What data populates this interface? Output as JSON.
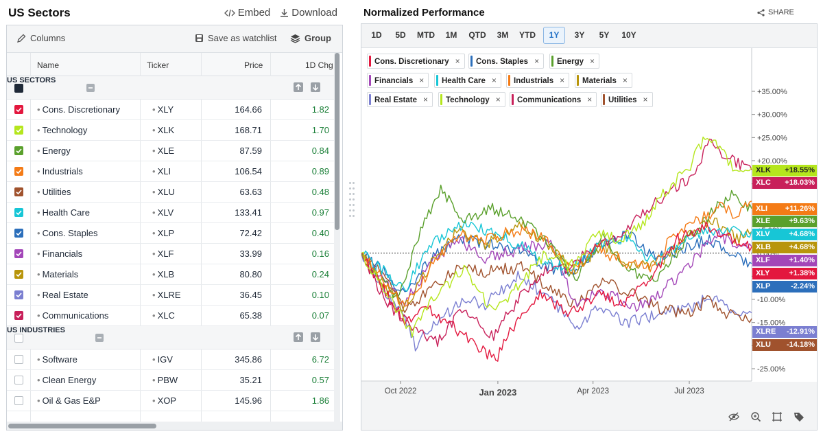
{
  "left_panel": {
    "title": "US Sectors",
    "embed_label": "Embed",
    "download_label": "Download",
    "columns_label": "Columns",
    "watchlist_label": "Save as watchlist",
    "group_label": "Group",
    "headers": {
      "name": "Name",
      "ticker": "Ticker",
      "price": "Price",
      "change": "1D Chg"
    },
    "groups": [
      {
        "title": "US SECTORS",
        "rows": [
          {
            "name": "Cons. Discretionary",
            "ticker": "XLY",
            "price": "164.66",
            "change": "1.82",
            "color": "#e3173e",
            "checked": true
          },
          {
            "name": "Technology",
            "ticker": "XLK",
            "price": "168.71",
            "change": "1.70",
            "color": "#b5e61d",
            "checked": true
          },
          {
            "name": "Energy",
            "ticker": "XLE",
            "price": "87.59",
            "change": "0.84",
            "color": "#5aa02c",
            "checked": true
          },
          {
            "name": "Industrials",
            "ticker": "XLI",
            "price": "106.54",
            "change": "0.89",
            "color": "#f47b16",
            "checked": true
          },
          {
            "name": "Utilities",
            "ticker": "XLU",
            "price": "63.63",
            "change": "0.48",
            "color": "#a0522d",
            "checked": true
          },
          {
            "name": "Health Care",
            "ticker": "XLV",
            "price": "133.41",
            "change": "0.97",
            "color": "#17c6d6",
            "checked": true
          },
          {
            "name": "Cons. Staples",
            "ticker": "XLP",
            "price": "72.42",
            "change": "0.40",
            "color": "#2c6fbb",
            "checked": true
          },
          {
            "name": "Financials",
            "ticker": "XLF",
            "price": "33.99",
            "change": "0.16",
            "color": "#a346b8",
            "checked": true
          },
          {
            "name": "Materials",
            "ticker": "XLB",
            "price": "80.80",
            "change": "0.24",
            "color": "#b8950b",
            "checked": true
          },
          {
            "name": "Real Estate",
            "ticker": "XLRE",
            "price": "36.45",
            "change": "0.10",
            "color": "#7b7fd1",
            "checked": true
          },
          {
            "name": "Communications",
            "ticker": "XLC",
            "price": "65.38",
            "change": "0.07",
            "color": "#c8205a",
            "checked": true
          }
        ]
      },
      {
        "title": "US INDUSTRIES",
        "rows": [
          {
            "name": "Software",
            "ticker": "IGV",
            "price": "345.86",
            "change": "6.72",
            "color": "#ffffff",
            "checked": false
          },
          {
            "name": "Clean Energy",
            "ticker": "PBW",
            "price": "35.21",
            "change": "0.57",
            "color": "#ffffff",
            "checked": false
          },
          {
            "name": "Oil & Gas E&P",
            "ticker": "XOP",
            "price": "145.96",
            "change": "1.86",
            "color": "#ffffff",
            "checked": false
          }
        ]
      }
    ]
  },
  "right_panel": {
    "title": "Normalized Performance",
    "share_label": "SHARE",
    "periods": [
      "1D",
      "5D",
      "MTD",
      "1M",
      "QTD",
      "3M",
      "YTD",
      "1Y",
      "3Y",
      "5Y",
      "10Y"
    ],
    "active_period": "1Y",
    "legend_close": "×",
    "legend": [
      {
        "name": "Cons. Discretionary",
        "color": "#e3173e"
      },
      {
        "name": "Cons. Staples",
        "color": "#2c6fbb"
      },
      {
        "name": "Energy",
        "color": "#5aa02c"
      },
      {
        "name": "Financials",
        "color": "#a346b8"
      },
      {
        "name": "Health Care",
        "color": "#17c6d6"
      },
      {
        "name": "Industrials",
        "color": "#f47b16"
      },
      {
        "name": "Materials",
        "color": "#b8950b"
      },
      {
        "name": "Real Estate",
        "color": "#7b7fd1"
      },
      {
        "name": "Technology",
        "color": "#b5e61d"
      },
      {
        "name": "Communications",
        "color": "#c8205a"
      },
      {
        "name": "Utilities",
        "color": "#a0522d"
      }
    ]
  },
  "chart_data": {
    "type": "line",
    "ylabel_format": "percent",
    "ylim": [
      -27,
      39
    ],
    "yticks": [
      -25,
      -20,
      -15,
      -10,
      -5,
      0,
      5,
      10,
      15,
      20,
      25,
      30,
      35
    ],
    "ytick_labels": [
      "-25.00%",
      "-20.00%",
      "-15.00%",
      "-10.00%",
      "-5.00%",
      "0.00%",
      "+5.00%",
      "+10.00%",
      "+15.00%",
      "+20.00%",
      "+25.00%",
      "+30.00%",
      "+35.00%"
    ],
    "xlim": [
      "2022-08-25",
      "2023-08-29"
    ],
    "xticks": [
      {
        "date": "2022-10-01",
        "label": "Oct 2022",
        "major": false
      },
      {
        "date": "2023-01-01",
        "label": "Jan 2023",
        "major": true
      },
      {
        "date": "2023-04-01",
        "label": "Apr 2023",
        "major": false
      },
      {
        "date": "2023-07-01",
        "label": "Jul 2023",
        "major": false
      }
    ],
    "series": [
      {
        "name": "XLK",
        "color": "#b5e61d",
        "last_label": "+18.55%",
        "last": 18.55,
        "points": [
          [
            "2022-08-25",
            0
          ],
          [
            "2022-09-15",
            -8
          ],
          [
            "2022-10-12",
            -17
          ],
          [
            "2022-11-01",
            -10
          ],
          [
            "2022-11-30",
            -3
          ],
          [
            "2022-12-28",
            -13
          ],
          [
            "2023-01-20",
            -7
          ],
          [
            "2023-02-15",
            0
          ],
          [
            "2023-03-10",
            -3
          ],
          [
            "2023-04-05",
            4
          ],
          [
            "2023-04-28",
            3
          ],
          [
            "2023-05-20",
            7
          ],
          [
            "2023-06-10",
            14
          ],
          [
            "2023-06-30",
            18
          ],
          [
            "2023-07-18",
            26
          ],
          [
            "2023-08-01",
            22
          ],
          [
            "2023-08-15",
            17
          ],
          [
            "2023-08-29",
            18.55
          ]
        ]
      },
      {
        "name": "XLC",
        "color": "#c8205a",
        "last_label": "+18.03%",
        "last": 18.03,
        "points": [
          [
            "2022-08-25",
            0
          ],
          [
            "2022-09-15",
            -10
          ],
          [
            "2022-10-12",
            -16
          ],
          [
            "2022-11-05",
            -19
          ],
          [
            "2022-11-30",
            -12
          ],
          [
            "2022-12-28",
            -18
          ],
          [
            "2023-01-20",
            -10
          ],
          [
            "2023-02-15",
            -4
          ],
          [
            "2023-03-10",
            -3
          ],
          [
            "2023-04-05",
            2
          ],
          [
            "2023-04-28",
            4
          ],
          [
            "2023-05-20",
            9
          ],
          [
            "2023-06-15",
            14
          ],
          [
            "2023-07-05",
            17
          ],
          [
            "2023-07-20",
            24
          ],
          [
            "2023-08-05",
            21
          ],
          [
            "2023-08-20",
            19
          ],
          [
            "2023-08-29",
            18.03
          ]
        ]
      },
      {
        "name": "XLI",
        "color": "#f47b16",
        "last_label": "+11.26%",
        "last": 11.26,
        "points": [
          [
            "2022-08-25",
            0
          ],
          [
            "2022-09-15",
            -6
          ],
          [
            "2022-10-05",
            -12
          ],
          [
            "2022-10-30",
            -3
          ],
          [
            "2022-11-25",
            4
          ],
          [
            "2022-12-20",
            3
          ],
          [
            "2023-01-20",
            5
          ],
          [
            "2023-02-15",
            3
          ],
          [
            "2023-03-12",
            -4
          ],
          [
            "2023-04-05",
            1
          ],
          [
            "2023-05-01",
            -2
          ],
          [
            "2023-05-25",
            -3
          ],
          [
            "2023-06-20",
            5
          ],
          [
            "2023-07-15",
            8
          ],
          [
            "2023-08-01",
            10
          ],
          [
            "2023-08-15",
            8
          ],
          [
            "2023-08-29",
            11.26
          ]
        ]
      },
      {
        "name": "XLE",
        "color": "#5aa02c",
        "last_label": "+9.63%",
        "last": 9.63,
        "points": [
          [
            "2022-08-25",
            0
          ],
          [
            "2022-09-10",
            -5
          ],
          [
            "2022-09-28",
            -10
          ],
          [
            "2022-10-20",
            5
          ],
          [
            "2022-11-08",
            14
          ],
          [
            "2022-12-01",
            7
          ],
          [
            "2022-12-25",
            10
          ],
          [
            "2023-01-25",
            7
          ],
          [
            "2023-02-20",
            2
          ],
          [
            "2023-03-15",
            -6
          ],
          [
            "2023-04-10",
            4
          ],
          [
            "2023-05-05",
            -4
          ],
          [
            "2023-06-01",
            -5
          ],
          [
            "2023-06-25",
            2
          ],
          [
            "2023-07-20",
            8
          ],
          [
            "2023-08-10",
            13
          ],
          [
            "2023-08-29",
            9.63
          ]
        ]
      },
      {
        "name": "XLV",
        "color": "#17c6d6",
        "last_label": "+4.68%",
        "last": 4.68,
        "points": [
          [
            "2022-08-25",
            0
          ],
          [
            "2022-09-15",
            -4
          ],
          [
            "2022-10-05",
            -8
          ],
          [
            "2022-10-30",
            2
          ],
          [
            "2022-11-25",
            6
          ],
          [
            "2022-12-20",
            5
          ],
          [
            "2023-01-20",
            2
          ],
          [
            "2023-02-15",
            -2
          ],
          [
            "2023-03-12",
            -3
          ],
          [
            "2023-04-10",
            2
          ],
          [
            "2023-05-01",
            3
          ],
          [
            "2023-05-30",
            -2
          ],
          [
            "2023-06-25",
            3
          ],
          [
            "2023-07-20",
            5
          ],
          [
            "2023-08-10",
            5
          ],
          [
            "2023-08-29",
            4.68
          ]
        ]
      },
      {
        "name": "XLB",
        "color": "#b8950b",
        "last_label": "+4.68%",
        "last": 4.68,
        "points": [
          [
            "2022-08-25",
            0
          ],
          [
            "2022-09-15",
            -7
          ],
          [
            "2022-10-05",
            -12
          ],
          [
            "2022-10-30",
            -2
          ],
          [
            "2022-11-25",
            5
          ],
          [
            "2022-12-20",
            2
          ],
          [
            "2023-01-25",
            6
          ],
          [
            "2023-02-20",
            1
          ],
          [
            "2023-03-15",
            -4
          ],
          [
            "2023-04-10",
            2
          ],
          [
            "2023-05-10",
            -3
          ],
          [
            "2023-06-05",
            -2
          ],
          [
            "2023-06-30",
            4
          ],
          [
            "2023-07-25",
            7
          ],
          [
            "2023-08-15",
            3
          ],
          [
            "2023-08-29",
            4.68
          ]
        ]
      },
      {
        "name": "XLF",
        "color": "#a346b8",
        "last_label": "+1.40%",
        "last": 1.4,
        "points": [
          [
            "2022-08-25",
            0
          ],
          [
            "2022-09-15",
            -6
          ],
          [
            "2022-10-05",
            -11
          ],
          [
            "2022-10-30",
            -2
          ],
          [
            "2022-11-25",
            3
          ],
          [
            "2022-12-20",
            -1
          ],
          [
            "2023-01-25",
            1
          ],
          [
            "2023-02-20",
            2
          ],
          [
            "2023-03-15",
            -11
          ],
          [
            "2023-04-10",
            -8
          ],
          [
            "2023-05-10",
            -12
          ],
          [
            "2023-06-01",
            -9
          ],
          [
            "2023-06-30",
            -3
          ],
          [
            "2023-07-25",
            4
          ],
          [
            "2023-08-15",
            2
          ],
          [
            "2023-08-29",
            1.4
          ]
        ]
      },
      {
        "name": "XLY",
        "color": "#e3173e",
        "last_label": "+1.38%",
        "last": 1.38,
        "points": [
          [
            "2022-08-25",
            0
          ],
          [
            "2022-09-15",
            -8
          ],
          [
            "2022-10-05",
            -15
          ],
          [
            "2022-10-25",
            -12
          ],
          [
            "2022-11-20",
            -16
          ],
          [
            "2022-12-10",
            -20
          ],
          [
            "2022-12-30",
            -23
          ],
          [
            "2023-01-20",
            -14
          ],
          [
            "2023-02-10",
            -9
          ],
          [
            "2023-03-10",
            -13
          ],
          [
            "2023-04-05",
            -9
          ],
          [
            "2023-05-01",
            -11
          ],
          [
            "2023-05-25",
            -5
          ],
          [
            "2023-06-20",
            3
          ],
          [
            "2023-07-15",
            6
          ],
          [
            "2023-08-05",
            4
          ],
          [
            "2023-08-29",
            1.38
          ]
        ]
      },
      {
        "name": "XLP",
        "color": "#2c6fbb",
        "last_label": "-2.24%",
        "last": -2.24,
        "points": [
          [
            "2022-08-25",
            0
          ],
          [
            "2022-09-15",
            -4
          ],
          [
            "2022-10-05",
            -9
          ],
          [
            "2022-10-30",
            -1
          ],
          [
            "2022-11-25",
            3
          ],
          [
            "2022-12-20",
            2
          ],
          [
            "2023-01-20",
            1
          ],
          [
            "2023-02-15",
            -3
          ],
          [
            "2023-03-12",
            -4
          ],
          [
            "2023-04-10",
            2
          ],
          [
            "2023-05-05",
            4
          ],
          [
            "2023-05-30",
            -1
          ],
          [
            "2023-06-25",
            1
          ],
          [
            "2023-07-20",
            3
          ],
          [
            "2023-08-10",
            0
          ],
          [
            "2023-08-29",
            -2.24
          ]
        ]
      },
      {
        "name": "XLRE",
        "color": "#7b7fd1",
        "last_label": "-12.91%",
        "last": -12.91,
        "points": [
          [
            "2022-08-25",
            0
          ],
          [
            "2022-09-15",
            -8
          ],
          [
            "2022-10-05",
            -14
          ],
          [
            "2022-10-15",
            -20
          ],
          [
            "2022-11-05",
            -15
          ],
          [
            "2022-11-30",
            -10
          ],
          [
            "2022-12-20",
            -11
          ],
          [
            "2023-01-20",
            -5
          ],
          [
            "2023-02-15",
            -9
          ],
          [
            "2023-03-15",
            -16
          ],
          [
            "2023-04-05",
            -12
          ],
          [
            "2023-05-05",
            -15
          ],
          [
            "2023-06-05",
            -13
          ],
          [
            "2023-06-30",
            -12
          ],
          [
            "2023-07-25",
            -9
          ],
          [
            "2023-08-15",
            -14
          ],
          [
            "2023-08-29",
            -12.91
          ]
        ]
      },
      {
        "name": "XLU",
        "color": "#a0522d",
        "last_label": "-14.18%",
        "last": -14.18,
        "points": [
          [
            "2022-08-25",
            0
          ],
          [
            "2022-09-15",
            -4
          ],
          [
            "2022-10-05",
            -12
          ],
          [
            "2022-10-30",
            -8
          ],
          [
            "2022-11-25",
            -3
          ],
          [
            "2022-12-20",
            -4
          ],
          [
            "2023-01-25",
            -3
          ],
          [
            "2023-02-20",
            -8
          ],
          [
            "2023-03-15",
            -11
          ],
          [
            "2023-04-10",
            -6
          ],
          [
            "2023-05-10",
            -9
          ],
          [
            "2023-06-05",
            -12
          ],
          [
            "2023-06-30",
            -13
          ],
          [
            "2023-07-20",
            -10
          ],
          [
            "2023-08-05",
            -13
          ],
          [
            "2023-08-29",
            -14.18
          ]
        ]
      }
    ]
  }
}
